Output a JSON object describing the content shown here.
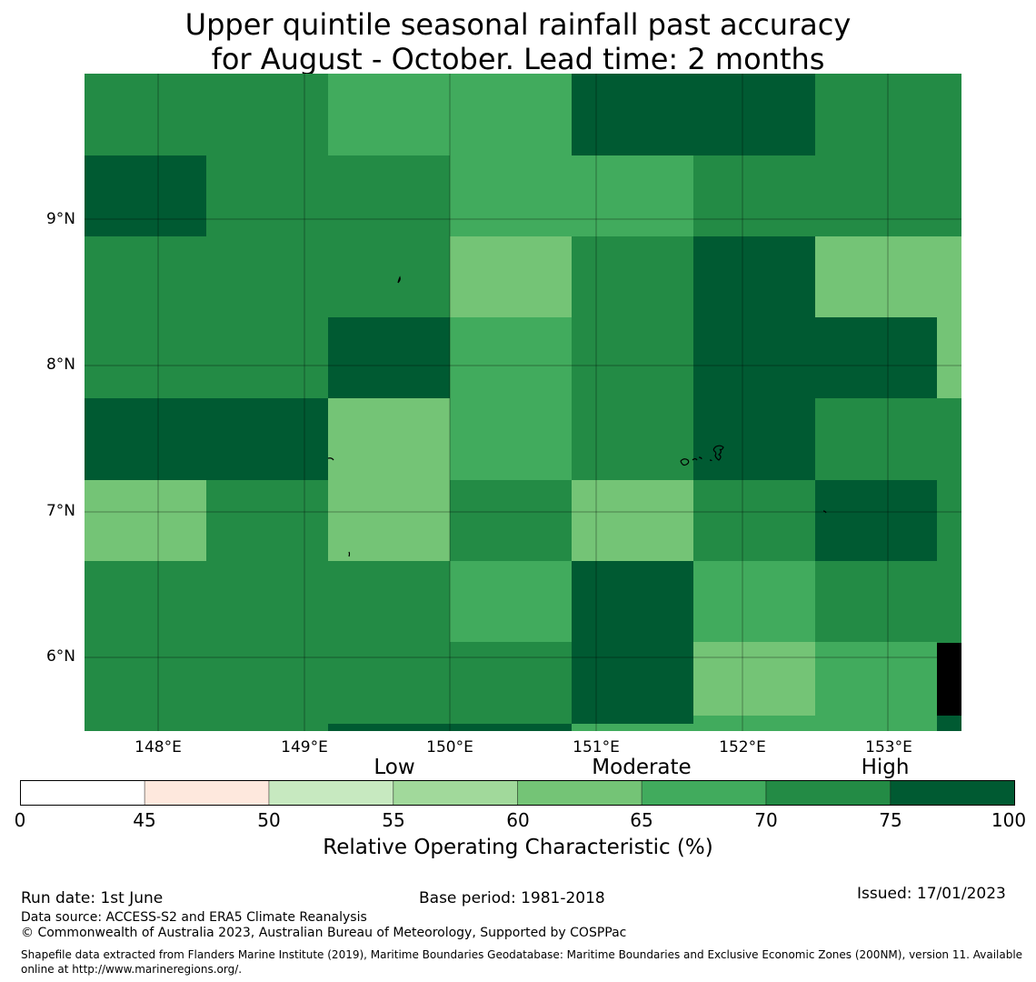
{
  "title": {
    "line1": "Upper quintile seasonal rainfall past accuracy",
    "line2": "for August - October. Lead time: 2 months"
  },
  "map": {
    "lat_labels": [
      "9°N",
      "8°N",
      "7°N",
      "6°N"
    ],
    "lon_labels": [
      "148°E",
      "149°E",
      "150°E",
      "151°E",
      "152°E",
      "153°E"
    ],
    "lon_range": [
      147.5,
      153.5
    ],
    "lat_range": [
      5.5,
      10.0
    ]
  },
  "legend": {
    "categories": [
      "Low",
      "Moderate",
      "High"
    ],
    "ticks": [
      "0",
      "45",
      "50",
      "55",
      "60",
      "65",
      "70",
      "75",
      "100"
    ],
    "colors": [
      "#ffffff",
      "#fee8dd",
      "#c7e9c0",
      "#a1d99b",
      "#74c476",
      "#41ab5d",
      "#238b45",
      "#005a32"
    ],
    "title": "Relative Operating Characteristic (%)"
  },
  "footer": {
    "run_date": "Run date: 1st June",
    "base_period": "Base period: 1981-2018",
    "issued": "Issued: 17/01/2023",
    "data_source": "Data source: ACCESS-S2 and ERA5 Climate Reanalysis",
    "copyright": "© Commonwealth of Australia 2023, Australian Bureau of Meteorology, Supported by COSPPac",
    "shapefile_line1": "Shapefile data extracted from Flanders Marine Institute (2019), Maritime Boundaries Geodatabase: Maritime Boundaries and Exclusive Economic Zones (200NM), version 11. Available",
    "shapefile_line2": "online at http://www.marineregions.org/."
  }
}
